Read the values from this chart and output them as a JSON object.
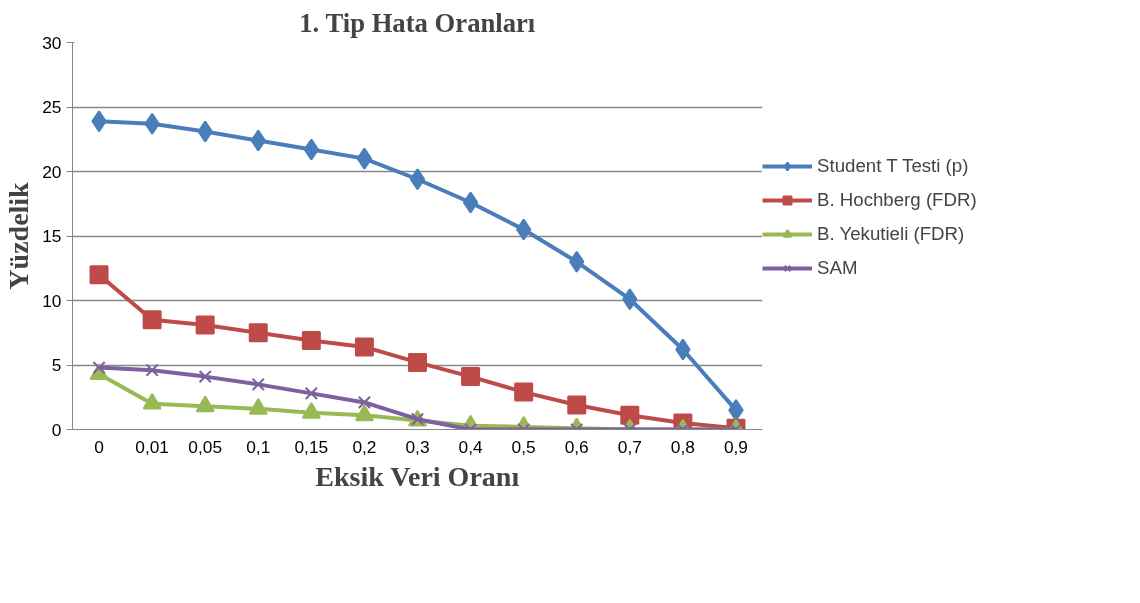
{
  "chart_data": {
    "type": "line",
    "title": "1. Tip Hata Oranları",
    "xlabel": "Eksik Veri Oranı",
    "ylabel": "Yüzdelik",
    "categories": [
      "0",
      "0,01",
      "0,05",
      "0,1",
      "0,15",
      "0,2",
      "0,3",
      "0,4",
      "0,5",
      "0,6",
      "0,7",
      "0,8",
      "0,9"
    ],
    "series": [
      {
        "name": "Student T Testi (p)",
        "color": "#4a7ebb",
        "marker": "diamond",
        "values": [
          23.9,
          23.7,
          23.1,
          22.4,
          21.7,
          21.0,
          19.4,
          17.6,
          15.5,
          13.0,
          10.1,
          6.2,
          1.5
        ]
      },
      {
        "name": "B. Hochberg (FDR)",
        "color": "#be4b48",
        "marker": "square",
        "values": [
          12.0,
          8.5,
          8.1,
          7.5,
          6.9,
          6.4,
          5.2,
          4.1,
          2.9,
          1.9,
          1.1,
          0.5,
          0.1
        ]
      },
      {
        "name": "B. Yekutieli (FDR)",
        "color": "#98b954",
        "marker": "triangle",
        "values": [
          4.3,
          2.0,
          1.8,
          1.6,
          1.3,
          1.1,
          0.7,
          0.3,
          0.2,
          0.1,
          0.0,
          0.0,
          0.0
        ]
      },
      {
        "name": "SAM",
        "color": "#7d60a0",
        "marker": "cross",
        "values": [
          4.8,
          4.6,
          4.1,
          3.5,
          2.8,
          2.1,
          0.8,
          0.0,
          0.0,
          0.0,
          0.0,
          0.0,
          0.0
        ]
      }
    ],
    "ylim": [
      0,
      30
    ],
    "yticks": [
      0,
      5,
      10,
      15,
      20,
      25,
      30
    ],
    "grid": "y",
    "legend": "right",
    "line_style": "solid"
  }
}
